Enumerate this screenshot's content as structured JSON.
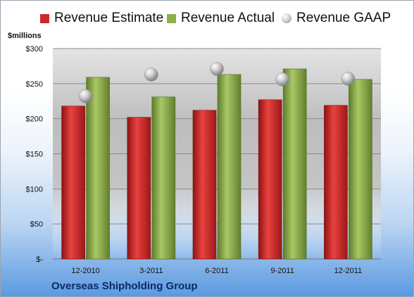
{
  "chart_data": {
    "type": "bar",
    "ylabel": "$millions",
    "categories": [
      "12-2010",
      "3-2011",
      "6-2011",
      "9-2011",
      "12-2011"
    ],
    "series": [
      {
        "name": "Revenue Estimate",
        "color": "#cc2a2a",
        "values": [
          218,
          202,
          212,
          227,
          219
        ]
      },
      {
        "name": "Revenue Actual",
        "color": "#8db04a",
        "values": [
          259,
          231,
          263,
          271,
          256
        ]
      },
      {
        "name": "Revenue GAAP",
        "color": "#c8c8c8",
        "marker": "circle",
        "values": [
          232,
          263,
          271,
          256,
          257
        ]
      }
    ],
    "ylim": [
      0,
      300
    ],
    "yticks": [
      0,
      50,
      100,
      150,
      200,
      250,
      300
    ],
    "ytick_labels": [
      "$-",
      "$50",
      "$100",
      "$150",
      "$200",
      "$250",
      "$300"
    ],
    "grid": true,
    "legend": "top"
  },
  "footer": {
    "company": "Overseas Shipholding Group"
  }
}
